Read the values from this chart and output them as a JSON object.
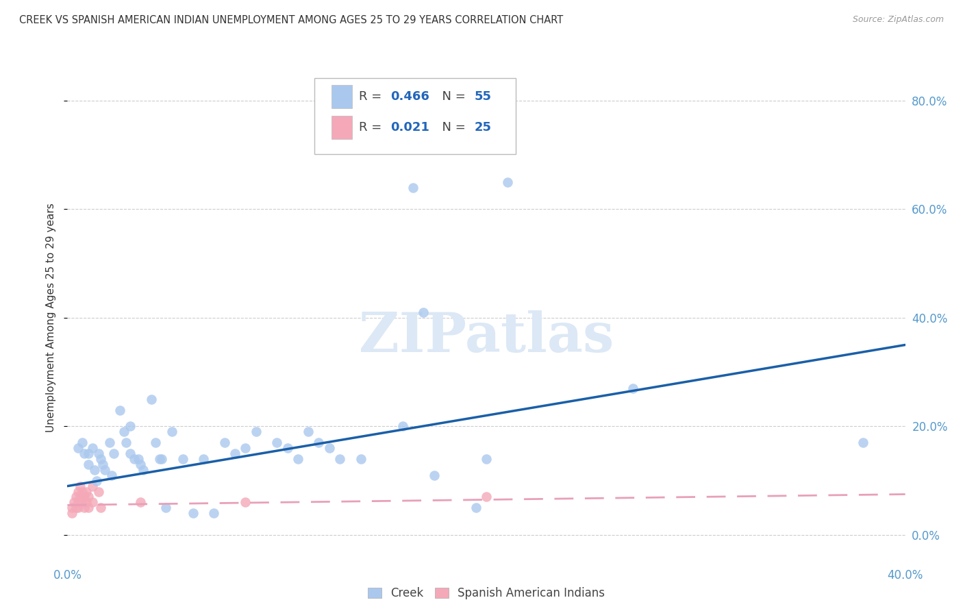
{
  "title": "CREEK VS SPANISH AMERICAN INDIAN UNEMPLOYMENT AMONG AGES 25 TO 29 YEARS CORRELATION CHART",
  "source": "Source: ZipAtlas.com",
  "ylabel": "Unemployment Among Ages 25 to 29 years",
  "xlim": [
    0.0,
    0.4
  ],
  "ylim": [
    -0.05,
    0.85
  ],
  "xticks": [
    0.0,
    0.1,
    0.2,
    0.3,
    0.4
  ],
  "xtick_labels": [
    "0.0%",
    "",
    "",
    "",
    "40.0%"
  ],
  "yticks": [
    0.0,
    0.2,
    0.4,
    0.6,
    0.8
  ],
  "ytick_labels_right": [
    "0.0%",
    "20.0%",
    "40.0%",
    "60.0%",
    "80.0%"
  ],
  "creek_color": "#aac8ee",
  "spanish_color": "#f4a8b8",
  "creek_line_color": "#1a5fa8",
  "spanish_line_color": "#e8a0b8",
  "background_color": "#ffffff",
  "grid_color": "#cccccc",
  "title_color": "#333333",
  "axis_label_color": "#333333",
  "tick_color_right": "#5599cc",
  "tick_color_bottom": "#5599cc",
  "watermark_text": "ZIPatlas",
  "watermark_color": "#dce8f5",
  "creek_R": "0.466",
  "creek_N": "55",
  "spanish_R": "0.021",
  "spanish_N": "25",
  "creek_scatter": [
    [
      0.005,
      0.16
    ],
    [
      0.007,
      0.17
    ],
    [
      0.008,
      0.15
    ],
    [
      0.01,
      0.15
    ],
    [
      0.01,
      0.13
    ],
    [
      0.012,
      0.16
    ],
    [
      0.013,
      0.12
    ],
    [
      0.014,
      0.1
    ],
    [
      0.015,
      0.15
    ],
    [
      0.016,
      0.14
    ],
    [
      0.017,
      0.13
    ],
    [
      0.018,
      0.12
    ],
    [
      0.02,
      0.17
    ],
    [
      0.021,
      0.11
    ],
    [
      0.022,
      0.15
    ],
    [
      0.025,
      0.23
    ],
    [
      0.027,
      0.19
    ],
    [
      0.028,
      0.17
    ],
    [
      0.03,
      0.2
    ],
    [
      0.03,
      0.15
    ],
    [
      0.032,
      0.14
    ],
    [
      0.034,
      0.14
    ],
    [
      0.035,
      0.13
    ],
    [
      0.036,
      0.12
    ],
    [
      0.04,
      0.25
    ],
    [
      0.042,
      0.17
    ],
    [
      0.044,
      0.14
    ],
    [
      0.045,
      0.14
    ],
    [
      0.047,
      0.05
    ],
    [
      0.05,
      0.19
    ],
    [
      0.055,
      0.14
    ],
    [
      0.06,
      0.04
    ],
    [
      0.065,
      0.14
    ],
    [
      0.07,
      0.04
    ],
    [
      0.075,
      0.17
    ],
    [
      0.08,
      0.15
    ],
    [
      0.085,
      0.16
    ],
    [
      0.09,
      0.19
    ],
    [
      0.1,
      0.17
    ],
    [
      0.105,
      0.16
    ],
    [
      0.11,
      0.14
    ],
    [
      0.115,
      0.19
    ],
    [
      0.12,
      0.17
    ],
    [
      0.125,
      0.16
    ],
    [
      0.13,
      0.14
    ],
    [
      0.14,
      0.14
    ],
    [
      0.16,
      0.2
    ],
    [
      0.165,
      0.64
    ],
    [
      0.17,
      0.41
    ],
    [
      0.175,
      0.11
    ],
    [
      0.195,
      0.05
    ],
    [
      0.2,
      0.14
    ],
    [
      0.21,
      0.65
    ],
    [
      0.27,
      0.27
    ],
    [
      0.38,
      0.17
    ]
  ],
  "spanish_scatter": [
    [
      0.002,
      0.05
    ],
    [
      0.002,
      0.04
    ],
    [
      0.003,
      0.06
    ],
    [
      0.004,
      0.07
    ],
    [
      0.004,
      0.05
    ],
    [
      0.005,
      0.08
    ],
    [
      0.005,
      0.06
    ],
    [
      0.005,
      0.05
    ],
    [
      0.006,
      0.09
    ],
    [
      0.006,
      0.07
    ],
    [
      0.007,
      0.08
    ],
    [
      0.007,
      0.06
    ],
    [
      0.008,
      0.07
    ],
    [
      0.008,
      0.05
    ],
    [
      0.009,
      0.08
    ],
    [
      0.009,
      0.06
    ],
    [
      0.01,
      0.07
    ],
    [
      0.01,
      0.05
    ],
    [
      0.012,
      0.09
    ],
    [
      0.012,
      0.06
    ],
    [
      0.015,
      0.08
    ],
    [
      0.016,
      0.05
    ],
    [
      0.035,
      0.06
    ],
    [
      0.085,
      0.06
    ],
    [
      0.2,
      0.07
    ]
  ],
  "creek_trendline_x": [
    0.0,
    0.4
  ],
  "creek_trendline_y": [
    0.09,
    0.35
  ],
  "spanish_trendline_x": [
    0.0,
    0.4
  ],
  "spanish_trendline_y": [
    0.055,
    0.075
  ]
}
